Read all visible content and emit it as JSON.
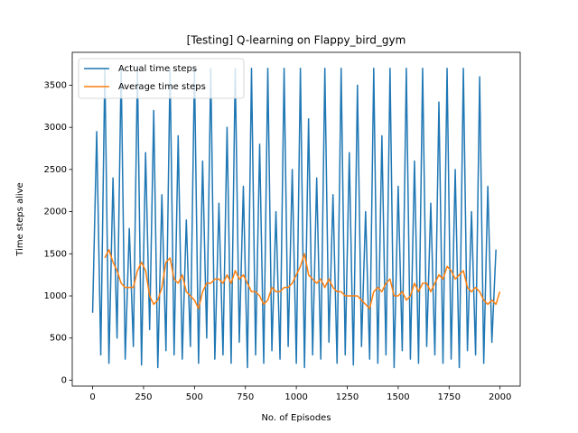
{
  "chart_data": {
    "type": "line",
    "title": "[Testing] Q-learning on Flappy_bird_gym",
    "x_label": "No. of Episodes",
    "y_label": "Time steps alive",
    "xlim": [
      -100,
      2099
    ],
    "ylim": [
      -70,
      3890
    ],
    "xticks": [
      0,
      250,
      500,
      750,
      1000,
      1250,
      1500,
      1750,
      2000
    ],
    "yticks": [
      0,
      500,
      1000,
      1500,
      2000,
      2500,
      3000,
      3500
    ],
    "legend": "upper left",
    "grid": false,
    "series": [
      {
        "name": "Actual time steps",
        "color": "#1f77b4",
        "x": [
          0,
          20,
          40,
          60,
          80,
          100,
          120,
          140,
          160,
          180,
          200,
          220,
          240,
          260,
          280,
          300,
          320,
          340,
          360,
          380,
          400,
          420,
          440,
          460,
          480,
          500,
          520,
          540,
          560,
          580,
          600,
          620,
          640,
          660,
          680,
          700,
          720,
          740,
          760,
          780,
          800,
          820,
          840,
          860,
          880,
          900,
          920,
          940,
          960,
          980,
          1000,
          1020,
          1040,
          1060,
          1080,
          1100,
          1120,
          1140,
          1160,
          1180,
          1200,
          1220,
          1240,
          1260,
          1280,
          1300,
          1320,
          1340,
          1360,
          1380,
          1400,
          1420,
          1440,
          1460,
          1480,
          1500,
          1520,
          1540,
          1560,
          1580,
          1600,
          1620,
          1640,
          1660,
          1680,
          1700,
          1720,
          1740,
          1760,
          1780,
          1800,
          1820,
          1840,
          1860,
          1880,
          1900,
          1920,
          1940,
          1960,
          1980
        ],
        "values": [
          800,
          2950,
          300,
          3700,
          200,
          2400,
          500,
          3700,
          250,
          1800,
          400,
          3700,
          180,
          2700,
          600,
          3200,
          150,
          2200,
          350,
          3700,
          300,
          2900,
          250,
          1900,
          400,
          3700,
          200,
          2600,
          500,
          3700,
          250,
          2100,
          300,
          3000,
          200,
          3700,
          450,
          2300,
          150,
          3700,
          300,
          2800,
          200,
          3700,
          350,
          2000,
          250,
          3700,
          400,
          2500,
          200,
          3700,
          150,
          3100,
          300,
          2400,
          250,
          3700,
          450,
          2200,
          200,
          3700,
          300,
          2700,
          180,
          3500,
          400,
          2000,
          250,
          3700,
          200,
          2900,
          300,
          3700,
          150,
          2300,
          350,
          3700,
          250,
          2600,
          200,
          3700,
          400,
          2100,
          300,
          3300,
          200,
          3700,
          250,
          2500,
          150,
          3700,
          350,
          2000,
          300,
          3600,
          200,
          2300,
          450,
          1550
        ]
      },
      {
        "name": "Average time steps",
        "color": "#ff7f0e",
        "x": [
          60,
          80,
          100,
          120,
          140,
          160,
          180,
          200,
          220,
          240,
          260,
          280,
          300,
          320,
          340,
          360,
          380,
          400,
          420,
          440,
          460,
          480,
          500,
          520,
          540,
          560,
          580,
          600,
          620,
          640,
          660,
          680,
          700,
          720,
          740,
          760,
          780,
          800,
          820,
          840,
          860,
          880,
          900,
          920,
          940,
          960,
          980,
          1000,
          1020,
          1040,
          1060,
          1080,
          1100,
          1120,
          1140,
          1160,
          1180,
          1200,
          1220,
          1240,
          1260,
          1280,
          1300,
          1320,
          1340,
          1360,
          1380,
          1400,
          1420,
          1440,
          1460,
          1480,
          1500,
          1520,
          1540,
          1560,
          1580,
          1600,
          1620,
          1640,
          1660,
          1680,
          1700,
          1720,
          1740,
          1760,
          1780,
          1800,
          1820,
          1840,
          1860,
          1880,
          1900,
          1920,
          1940,
          1960,
          1980,
          1999
        ],
        "values": [
          1450,
          1550,
          1400,
          1300,
          1150,
          1100,
          1100,
          1100,
          1300,
          1400,
          1300,
          1000,
          900,
          950,
          1100,
          1400,
          1450,
          1200,
          1150,
          1250,
          1050,
          1000,
          950,
          850,
          1050,
          1150,
          1150,
          1200,
          1200,
          1150,
          1250,
          1150,
          1300,
          1200,
          1250,
          1150,
          1050,
          1050,
          1000,
          900,
          950,
          1100,
          1050,
          1050,
          1100,
          1100,
          1150,
          1250,
          1350,
          1500,
          1250,
          1200,
          1150,
          1200,
          1100,
          1200,
          1100,
          1050,
          1050,
          1000,
          1000,
          1000,
          1000,
          950,
          900,
          850,
          1050,
          1100,
          1050,
          1150,
          1200,
          1000,
          1000,
          1050,
          950,
          1000,
          1150,
          1050,
          1150,
          1150,
          1050,
          1150,
          1250,
          1200,
          1350,
          1300,
          1200,
          1250,
          1300,
          1100,
          1050,
          1100,
          1050,
          950,
          900,
          950,
          900,
          1050
        ]
      }
    ]
  }
}
